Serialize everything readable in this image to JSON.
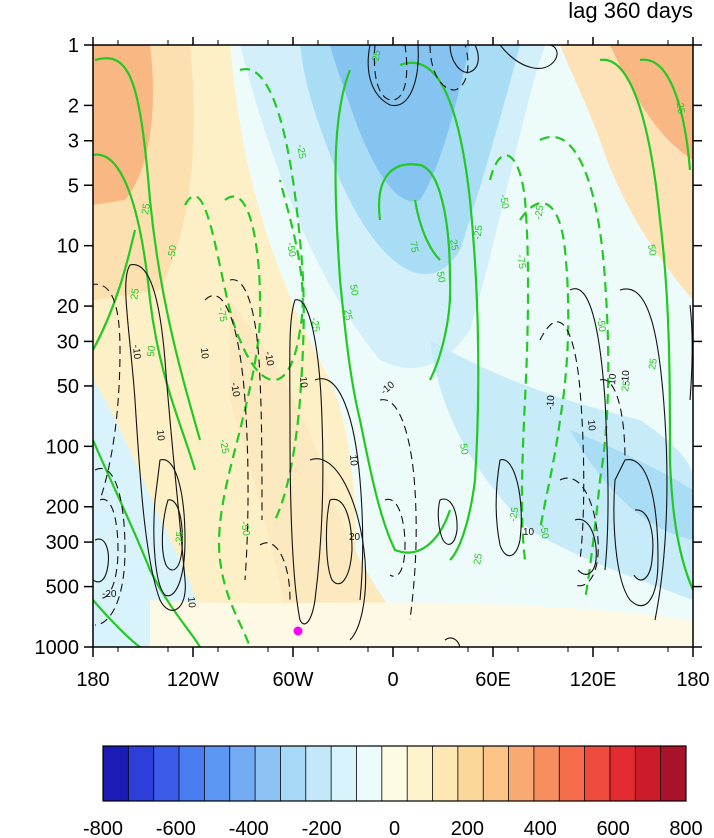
{
  "chart_data": {
    "type": "heatmap",
    "title": "lag 360 days",
    "xlabel": "",
    "ylabel": "",
    "x_ticks": [
      "180",
      "120W",
      "60W",
      "0",
      "60E",
      "120E",
      "180"
    ],
    "y_ticks": [
      "1",
      "2",
      "3",
      "5",
      "10",
      "20",
      "30",
      "50",
      "100",
      "200",
      "300",
      "500",
      "1000"
    ],
    "y_scale": "log",
    "colorbar": {
      "tick_labels": [
        "-800",
        "-600",
        "-400",
        "-200",
        "0",
        "200",
        "400",
        "600",
        "800"
      ],
      "range": [
        -800,
        800
      ],
      "colors": [
        "#1b1bb5",
        "#2d3ed9",
        "#3a5ce8",
        "#4a7cf2",
        "#5d97f5",
        "#73acf5",
        "#8cc2f5",
        "#a8d8f7",
        "#c2e8fa",
        "#d8f3fb",
        "#ecfbfc",
        "#fdfbe2",
        "#fdf3cc",
        "#fde7b3",
        "#fcd79a",
        "#fbc386",
        "#f9aa72",
        "#f78e5e",
        "#f56d4b",
        "#ef4c3d",
        "#e32c32",
        "#cc1b2a",
        "#a8122a"
      ]
    },
    "shading_regions": [
      {
        "lon": [
          -180,
          -100
        ],
        "p_top": 1,
        "p_bottom": 20,
        "value": 300
      },
      {
        "lon": [
          -40,
          60
        ],
        "p_top": 1,
        "p_bottom": 20,
        "value": -250
      },
      {
        "lon": [
          140,
          180
        ],
        "p_top": 1,
        "p_bottom": 20,
        "value": 300
      },
      {
        "lon": [
          -180,
          -150
        ],
        "p_top": 100,
        "p_bottom": 1000,
        "value": -50
      },
      {
        "lon": [
          60,
          180
        ],
        "p_top": 50,
        "p_bottom": 500,
        "value": -100
      }
    ],
    "green_contour_labels": [
      "25",
      "50",
      "75",
      "-25",
      "-50",
      "-75"
    ],
    "black_contour_labels": [
      "10",
      "20",
      "-10",
      "-20"
    ],
    "marker": {
      "lon": -57,
      "pressure": 850
    }
  }
}
